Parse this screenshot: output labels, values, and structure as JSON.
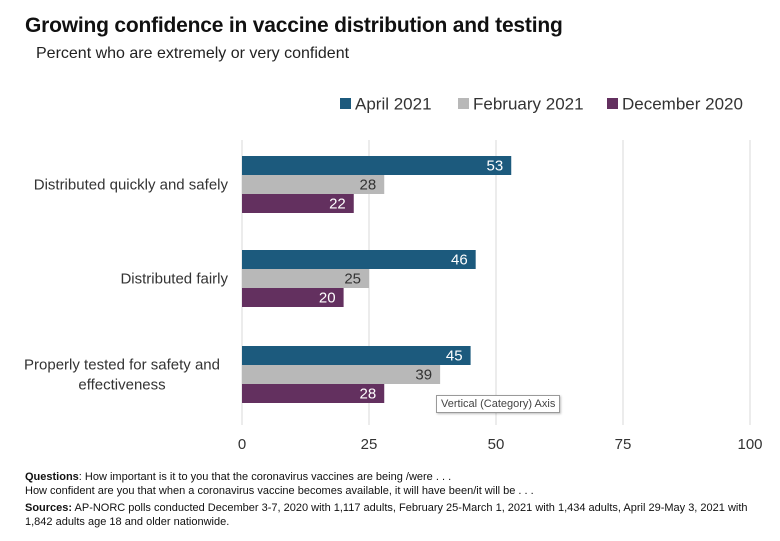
{
  "colors": {
    "april": "#1c5a7d",
    "february": "#b8b8b8",
    "december": "#63305f",
    "grid": "#d9d9d9",
    "label_light": "#ffffff",
    "label_dark": "#333333"
  },
  "chart_data": {
    "type": "bar",
    "orientation": "horizontal",
    "title": "Growing confidence in vaccine distribution and testing",
    "subtitle": "Percent who are extremely or very confident",
    "categories": [
      "Distributed quickly and safely",
      "Distributed fairly",
      "Properly tested for safety and effectiveness"
    ],
    "series": [
      {
        "name": "April 2021",
        "values": [
          53,
          46,
          45
        ]
      },
      {
        "name": "February 2021",
        "values": [
          28,
          25,
          39
        ]
      },
      {
        "name": "December 2020",
        "values": [
          22,
          20,
          28
        ]
      }
    ],
    "xlim": [
      0,
      100
    ],
    "xticks": [
      "0",
      "25",
      "50",
      "75",
      "100"
    ],
    "xlabel": "",
    "ylabel": "",
    "grid": true,
    "legend_position": "top-right",
    "data_labels": true
  },
  "tooltip": "Vertical (Category) Axis",
  "notes": {
    "questions_label": "Questions",
    "questions_text": ": How important is it to you that the coronavirus vaccines are being /were . . .",
    "questions_line2": "How confident are you that when a coronavirus vaccine becomes available, it will have been/it will be . . .",
    "sources_label": "Sources:",
    "sources_text": " AP-NORC polls conducted December 3-7, 2020 with 1,117 adults, February 25-March 1, 2021 with 1,434 adults, April 29-May 3, 2021 with 1,842 adults age 18 and older nationwide."
  }
}
